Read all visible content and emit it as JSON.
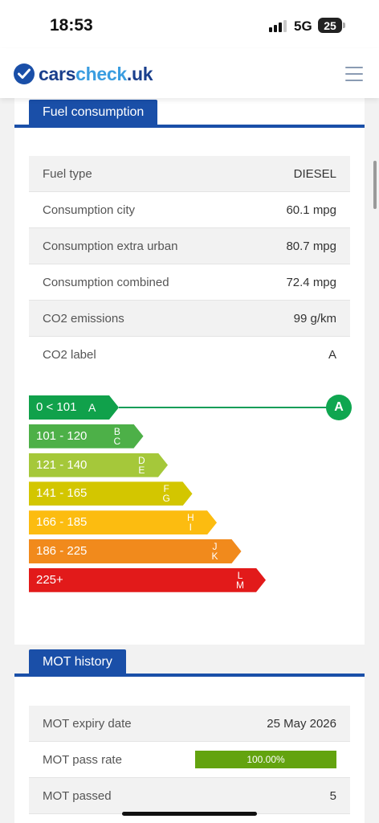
{
  "status_bar": {
    "time": "18:53",
    "network": "5G",
    "battery": "25"
  },
  "header": {
    "logo_part1": "cars",
    "logo_part2": "check",
    "logo_part3": ".uk",
    "menu_icon": "hamburger-icon"
  },
  "fuel": {
    "title": "Fuel consumption",
    "rows": [
      {
        "label": "Fuel type",
        "value": "DIESEL"
      },
      {
        "label": "Consumption city",
        "value": "60.1 mpg"
      },
      {
        "label": "Consumption extra urban",
        "value": "80.7 mpg"
      },
      {
        "label": "Consumption combined",
        "value": "72.4 mpg"
      },
      {
        "label": "CO2 emissions",
        "value": "99 g/km"
      },
      {
        "label": "CO2 label",
        "value": "A"
      }
    ]
  },
  "co2_bands": {
    "current_band": "A",
    "bands": [
      {
        "range": "0 < 101",
        "letters": [
          "A"
        ],
        "color": "#10a14b"
      },
      {
        "range": "101 - 120",
        "letters": [
          "B",
          "C"
        ],
        "color": "#4db048"
      },
      {
        "range": "121 - 140",
        "letters": [
          "D",
          "E"
        ],
        "color": "#a5c83a"
      },
      {
        "range": "141 - 165",
        "letters": [
          "F",
          "G"
        ],
        "color": "#d3c600"
      },
      {
        "range": "166 - 185",
        "letters": [
          "H",
          "I"
        ],
        "color": "#fcbc10"
      },
      {
        "range": "186 - 225",
        "letters": [
          "J",
          "K"
        ],
        "color": "#f18a1c"
      },
      {
        "range": "225+",
        "letters": [
          "L",
          "M"
        ],
        "color": "#e21a1a"
      }
    ]
  },
  "mot": {
    "title": "MOT history",
    "expiry_label": "MOT expiry date",
    "expiry_value": "25 May 2026",
    "pass_rate_label": "MOT pass rate",
    "pass_rate_value": "100.00%",
    "pass_rate_fraction": 1.0,
    "passed_label": "MOT passed",
    "passed_value": "5",
    "pass_color": "#63a30f"
  }
}
